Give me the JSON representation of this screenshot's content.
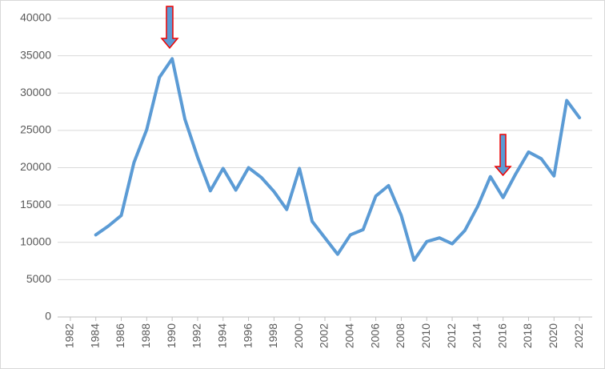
{
  "chart_data": {
    "type": "line",
    "x": [
      1984,
      1985,
      1986,
      1987,
      1988,
      1989,
      1990,
      1991,
      1992,
      1993,
      1994,
      1995,
      1996,
      1997,
      1998,
      1999,
      2000,
      2001,
      2002,
      2003,
      2004,
      2005,
      2006,
      2007,
      2008,
      2009,
      2010,
      2011,
      2012,
      2013,
      2014,
      2015,
      2016,
      2017,
      2018,
      2019,
      2020,
      2021,
      2022
    ],
    "series": [
      {
        "color": "#5b9bd5",
        "values": [
          11000,
          12200,
          13600,
          20700,
          25100,
          32100,
          34600,
          26500,
          21400,
          16900,
          19900,
          17000,
          20000,
          18700,
          16800,
          14400,
          19900,
          12800,
          10600,
          8400,
          11000,
          11700,
          16200,
          17600,
          13600,
          7600,
          10100,
          10600,
          9800,
          11600,
          14800,
          18800,
          16000,
          19200,
          22100,
          21200,
          18900,
          29000,
          26700
        ]
      }
    ],
    "xlim": [
      1981,
      2023
    ],
    "xticks": [
      1982,
      1984,
      1986,
      1988,
      1990,
      1992,
      1994,
      1996,
      1998,
      2000,
      2002,
      2004,
      2006,
      2008,
      2010,
      2012,
      2014,
      2016,
      2018,
      2020,
      2022
    ],
    "ylim": [
      0,
      40000
    ],
    "yticks": [
      0,
      5000,
      10000,
      15000,
      20000,
      25000,
      30000,
      35000,
      40000
    ],
    "grid": true
  }
}
